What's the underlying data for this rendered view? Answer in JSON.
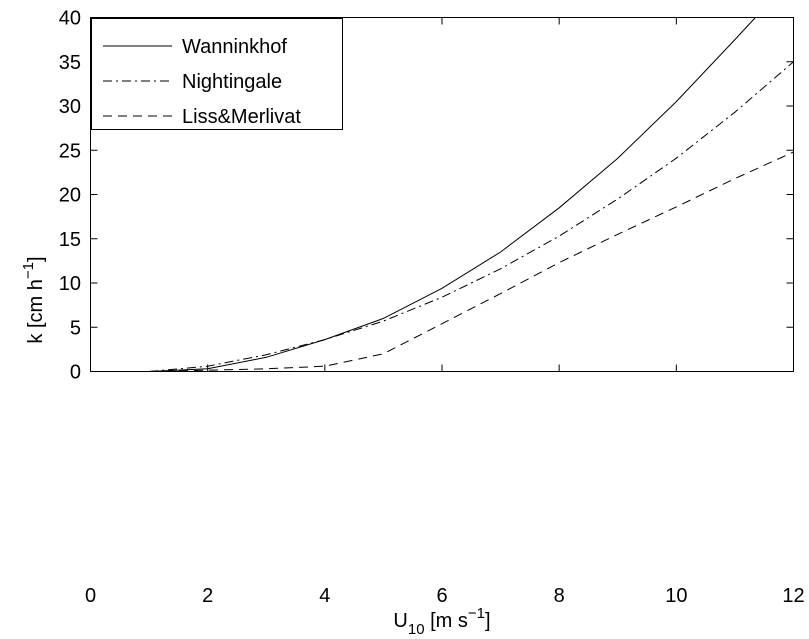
{
  "chart_data": {
    "type": "line",
    "title": "",
    "xlabel": "U",
    "xlabel_sub": "10",
    "xlabel_unit_pre": " [m s",
    "xlabel_unit_sup": "−1",
    "xlabel_unit_post": "]",
    "ylabel": "k [cm h",
    "ylabel_sup": "−1",
    "ylabel_post": "]",
    "xlim": [
      0,
      12
    ],
    "ylim": [
      0,
      40
    ],
    "xticks": [
      0,
      2,
      4,
      6,
      8,
      10,
      12
    ],
    "yticks": [
      0,
      5,
      10,
      15,
      20,
      25,
      30,
      35,
      40
    ],
    "grid": false,
    "legend_position": "top-left",
    "series": [
      {
        "name": "Wanninkhof",
        "style": "solid",
        "x": [
          1,
          2,
          3,
          4,
          5,
          6,
          7,
          8,
          9,
          10,
          11,
          11.35
        ],
        "y": [
          0.0,
          0.3,
          1.6,
          3.6,
          6.0,
          9.4,
          13.5,
          18.5,
          24.1,
          30.5,
          37.5,
          40
        ]
      },
      {
        "name": "Nightingale",
        "style": "dashdot",
        "x": [
          1,
          2,
          3,
          4,
          5,
          6,
          7,
          8,
          9,
          10,
          11,
          12
        ],
        "y": [
          0.0,
          0.6,
          1.9,
          3.6,
          5.7,
          8.4,
          11.6,
          15.3,
          19.5,
          24.1,
          29.3,
          35.0
        ]
      },
      {
        "name": "Liss&Merlivat",
        "style": "dashed",
        "x": [
          1,
          2,
          3,
          4,
          5,
          6,
          7,
          8,
          9,
          10,
          11,
          12
        ],
        "y": [
          0.0,
          0.15,
          0.3,
          0.6,
          2.0,
          5.4,
          8.8,
          12.3,
          15.5,
          18.6,
          21.8,
          24.8
        ]
      }
    ]
  }
}
